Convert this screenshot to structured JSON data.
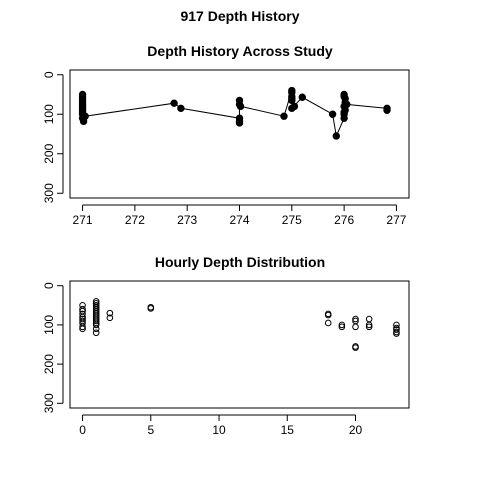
{
  "figure": {
    "title": "917 Depth History"
  },
  "chart_data": [
    {
      "type": "line",
      "title": "Depth History Across Study",
      "xlabel": "",
      "ylabel": "",
      "xlim": [
        271,
        277
      ],
      "ylim": [
        0,
        300
      ],
      "y_reversed": true,
      "x_ticks": [
        271,
        272,
        273,
        274,
        275,
        276,
        277
      ],
      "y_ticks": [
        0,
        100,
        200,
        300
      ],
      "grid": false,
      "marker": "filled-circle",
      "points": [
        [
          271.0,
          50
        ],
        [
          271.0,
          55
        ],
        [
          271.0,
          60
        ],
        [
          271.0,
          65
        ],
        [
          271.0,
          70
        ],
        [
          271.0,
          75
        ],
        [
          271.0,
          80
        ],
        [
          271.0,
          85
        ],
        [
          271.0,
          90
        ],
        [
          271.0,
          95
        ],
        [
          271.0,
          100
        ],
        [
          271.0,
          110
        ],
        [
          271.02,
          118
        ],
        [
          271.05,
          105
        ],
        [
          272.75,
          72
        ],
        [
          272.88,
          85
        ],
        [
          274.0,
          110
        ],
        [
          274.0,
          118
        ],
        [
          274.0,
          122
        ],
        [
          274.0,
          65
        ],
        [
          274.0,
          75
        ],
        [
          274.02,
          80
        ],
        [
          274.85,
          105
        ],
        [
          275.0,
          40
        ],
        [
          275.0,
          45
        ],
        [
          275.0,
          55
        ],
        [
          275.0,
          60
        ],
        [
          275.0,
          65
        ],
        [
          275.05,
          80
        ],
        [
          275.0,
          85
        ],
        [
          275.2,
          57
        ],
        [
          275.78,
          100
        ],
        [
          275.85,
          155
        ],
        [
          276.0,
          110
        ],
        [
          276.0,
          100
        ],
        [
          276.0,
          95
        ],
        [
          276.02,
          90
        ],
        [
          276.0,
          80
        ],
        [
          276.02,
          70
        ],
        [
          276.02,
          60
        ],
        [
          276.0,
          55
        ],
        [
          276.0,
          50
        ],
        [
          276.05,
          75
        ],
        [
          276.82,
          85
        ],
        [
          276.82,
          90
        ]
      ]
    },
    {
      "type": "scatter",
      "title": "Hourly Depth Distribution",
      "xlabel": "",
      "ylabel": "",
      "xlim": [
        0,
        23
      ],
      "ylim": [
        0,
        300
      ],
      "y_reversed": true,
      "x_ticks": [
        0,
        5,
        10,
        15,
        20
      ],
      "y_ticks": [
        0,
        100,
        200,
        300
      ],
      "grid": false,
      "marker": "open-circle",
      "points": [
        [
          0,
          50
        ],
        [
          0,
          60
        ],
        [
          0,
          65
        ],
        [
          0,
          72
        ],
        [
          0,
          80
        ],
        [
          0,
          85
        ],
        [
          0,
          90
        ],
        [
          0,
          95
        ],
        [
          0,
          105
        ],
        [
          0,
          110
        ],
        [
          1,
          40
        ],
        [
          1,
          45
        ],
        [
          1,
          50
        ],
        [
          1,
          55
        ],
        [
          1,
          60
        ],
        [
          1,
          65
        ],
        [
          1,
          70
        ],
        [
          1,
          75
        ],
        [
          1,
          80
        ],
        [
          1,
          85
        ],
        [
          1,
          90
        ],
        [
          1,
          95
        ],
        [
          1,
          100
        ],
        [
          1,
          110
        ],
        [
          1,
          120
        ],
        [
          2,
          70
        ],
        [
          2,
          82
        ],
        [
          5,
          55
        ],
        [
          5,
          58
        ],
        [
          18,
          72
        ],
        [
          18,
          75
        ],
        [
          18,
          95
        ],
        [
          19,
          100
        ],
        [
          19,
          105
        ],
        [
          20,
          85
        ],
        [
          20,
          90
        ],
        [
          20,
          105
        ],
        [
          20,
          155
        ],
        [
          20,
          158
        ],
        [
          21,
          85
        ],
        [
          21,
          100
        ],
        [
          21,
          105
        ],
        [
          23,
          100
        ],
        [
          23,
          108
        ],
        [
          23,
          112
        ],
        [
          23,
          118
        ],
        [
          23,
          122
        ]
      ]
    }
  ]
}
